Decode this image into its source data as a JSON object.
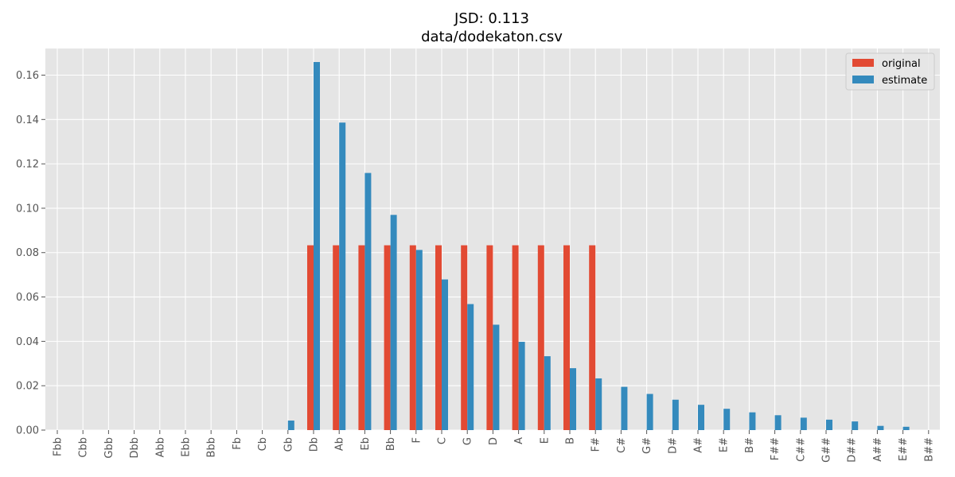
{
  "chart_data": {
    "type": "bar",
    "title": "JSD: 0.113",
    "subtitle": "data/dodekaton.csv",
    "xlabel": "",
    "ylabel": "",
    "ylim": [
      0,
      0.172
    ],
    "yticks": [
      "0.00",
      "0.02",
      "0.04",
      "0.06",
      "0.08",
      "0.10",
      "0.12",
      "0.14",
      "0.16"
    ],
    "grid": true,
    "legend_position": "top-right",
    "categories": [
      "Fbb",
      "Cbb",
      "Gbb",
      "Dbb",
      "Abb",
      "Ebb",
      "Bbb",
      "Fb",
      "Cb",
      "Gb",
      "Db",
      "Ab",
      "Eb",
      "Bb",
      "F",
      "C",
      "G",
      "D",
      "A",
      "E",
      "B",
      "F#",
      "C#",
      "G#",
      "D#",
      "A#",
      "E#",
      "B#",
      "F##",
      "C##",
      "G##",
      "D##",
      "A##",
      "E##",
      "B##"
    ],
    "series": [
      {
        "name": "original",
        "color": "#E24A33",
        "values": [
          0,
          0,
          0,
          0,
          0,
          0,
          0,
          0,
          0,
          0,
          0.0833,
          0.0833,
          0.0833,
          0.0833,
          0.0833,
          0.0833,
          0.0833,
          0.0833,
          0.0833,
          0.0833,
          0.0833,
          0.0833,
          0,
          0,
          0,
          0,
          0,
          0,
          0,
          0,
          0,
          0,
          0,
          0,
          0
        ]
      },
      {
        "name": "estimate",
        "color": "#348ABD",
        "values": [
          0,
          0,
          0,
          0,
          0,
          0,
          0,
          0,
          0,
          0.0043,
          0.1659,
          0.1386,
          0.1159,
          0.097,
          0.0812,
          0.0679,
          0.0568,
          0.0475,
          0.0398,
          0.0333,
          0.0279,
          0.0233,
          0.0195,
          0.0163,
          0.0137,
          0.0114,
          0.0096,
          0.008,
          0.0067,
          0.0056,
          0.0047,
          0.0039,
          0.0019,
          0.0015,
          0
        ]
      }
    ]
  },
  "colors": {
    "plot_background": "#E5E5E5",
    "grid": "#FFFFFF"
  }
}
